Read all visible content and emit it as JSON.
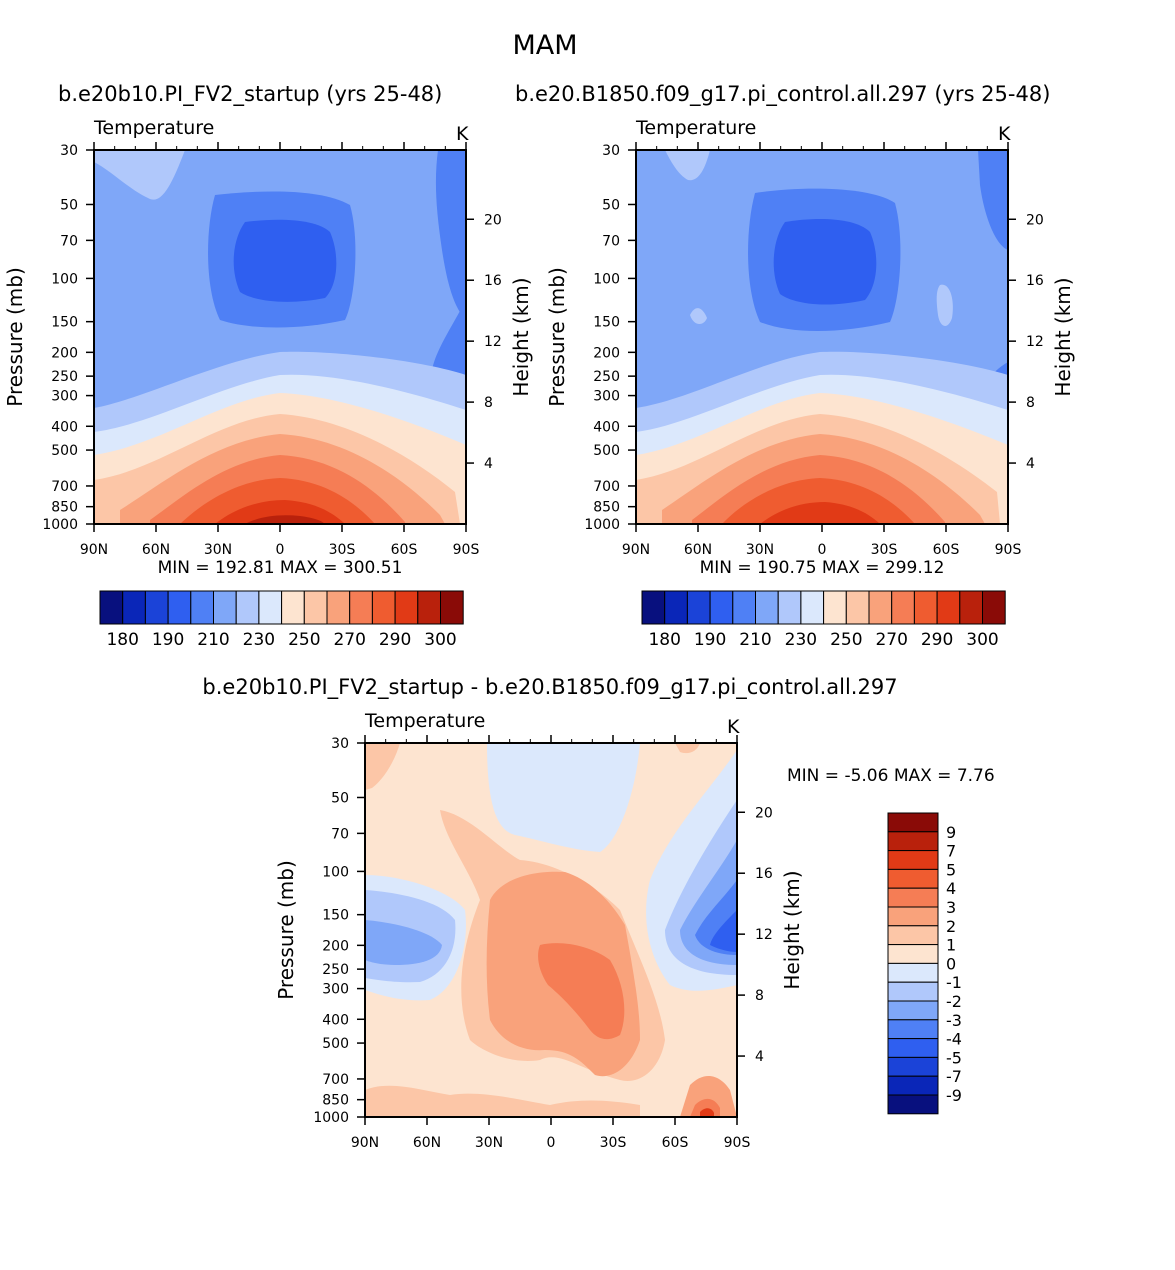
{
  "title": "MAM",
  "variable": "Temperature",
  "units": "K",
  "y_left_label": "Pressure (mb)",
  "y_right_label": "Height (km)",
  "pressure_ticks": [
    "30",
    "50",
    "70",
    "100",
    "150",
    "200",
    "250",
    "300",
    "400",
    "500",
    "700",
    "850",
    "1000"
  ],
  "height_ticks": [
    "4",
    "8",
    "12",
    "16",
    "20"
  ],
  "lat_ticks": [
    "90N",
    "60N",
    "30N",
    "0",
    "30S",
    "60S",
    "90S"
  ],
  "panels": {
    "left": {
      "run": "b.e20b10.PI_FV2_startup",
      "years": "(yrs 25-48)",
      "stats": "MIN = 192.81 MAX = 300.51"
    },
    "right": {
      "run": "b.e20.B1850.f09_g17.pi_control.all.297",
      "years": "(yrs 25-48)",
      "stats": "MIN = 190.75 MAX = 299.12"
    },
    "diff": {
      "title": "b.e20b10.PI_FV2_startup - b.e20.B1850.f09_g17.pi_control.all.297",
      "stats": "MIN = -5.06 MAX = 7.76"
    }
  },
  "temp_colorbar": {
    "labels": [
      "180",
      "190",
      "210",
      "230",
      "250",
      "270",
      "290",
      "300"
    ],
    "colors": [
      "#08107e",
      "#0a26b8",
      "#1b43d8",
      "#2f5ff0",
      "#4f80f5",
      "#7fa7f8",
      "#b0c8fb",
      "#dbe8fc",
      "#fde4d0",
      "#fcc6a7",
      "#f9a27b",
      "#f57d55",
      "#ef5c30",
      "#e13a16",
      "#b9210c",
      "#8a0b07"
    ]
  },
  "diff_colorbar": {
    "labels": [
      "9",
      "7",
      "5",
      "4",
      "3",
      "2",
      "1",
      "0",
      "-1",
      "-2",
      "-3",
      "-4",
      "-5",
      "-7",
      "-9"
    ],
    "colors": [
      "#8a0b07",
      "#b9210c",
      "#e13a16",
      "#ef5c30",
      "#f57d55",
      "#f9a27b",
      "#fcc6a7",
      "#fde4d0",
      "#dbe8fc",
      "#b0c8fb",
      "#7fa7f8",
      "#4f80f5",
      "#2f5ff0",
      "#1b43d8",
      "#0a26b8",
      "#08107e"
    ]
  },
  "chart_data": [
    {
      "type": "contour",
      "title": "b.e20b10.PI_FV2_startup (yrs 25-48)",
      "variable": "Temperature",
      "units": "K",
      "xlabel": "",
      "ylabel": "Pressure (mb)",
      "y2label": "Height (km)",
      "x_ticks": [
        "90N",
        "60N",
        "30N",
        "0",
        "30S",
        "60S",
        "90S"
      ],
      "min": 192.81,
      "max": 300.51,
      "levels": [
        180,
        190,
        200,
        210,
        220,
        230,
        240,
        250,
        260,
        270,
        280,
        290,
        300
      ]
    },
    {
      "type": "contour",
      "title": "b.e20.B1850.f09_g17.pi_control.all.297 (yrs 25-48)",
      "variable": "Temperature",
      "units": "K",
      "ylabel": "Pressure (mb)",
      "y2label": "Height (km)",
      "x_ticks": [
        "90N",
        "60N",
        "30N",
        "0",
        "30S",
        "60S",
        "90S"
      ],
      "min": 190.75,
      "max": 299.12,
      "levels": [
        180,
        190,
        200,
        210,
        220,
        230,
        240,
        250,
        260,
        270,
        280,
        290,
        300
      ]
    },
    {
      "type": "contour",
      "title": "b.e20b10.PI_FV2_startup - b.e20.B1850.f09_g17.pi_control.all.297",
      "variable": "Temperature",
      "units": "K",
      "ylabel": "Pressure (mb)",
      "y2label": "Height (km)",
      "x_ticks": [
        "90N",
        "60N",
        "30N",
        "0",
        "30S",
        "60S",
        "90S"
      ],
      "min": -5.06,
      "max": 7.76,
      "levels": [
        -9,
        -7,
        -5,
        -4,
        -3,
        -2,
        -1,
        0,
        1,
        2,
        3,
        4,
        5,
        7,
        9
      ]
    }
  ]
}
